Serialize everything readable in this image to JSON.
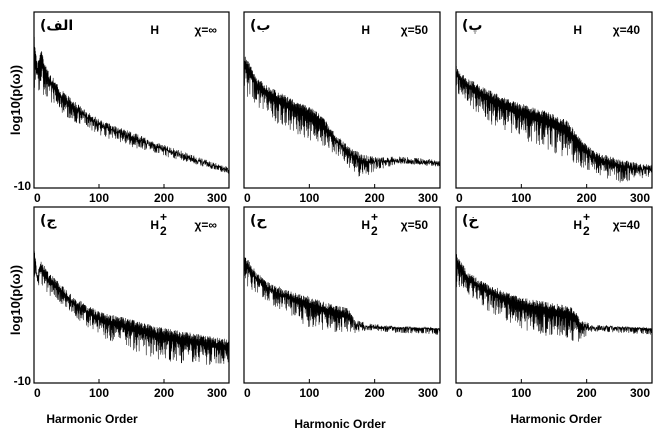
{
  "figure": {
    "y_axis_label": "log10(p(ω))",
    "x_axis_label": "Harmonic Order"
  },
  "chart_data": [
    {
      "type": "line",
      "panel_label": "الف)",
      "species": "H",
      "species_super": "",
      "species_sub": "",
      "chi": "χ=∞",
      "xlim": [
        0,
        300
      ],
      "ylim": [
        -10,
        5
      ],
      "x_ticks": [
        "0",
        "100",
        "200",
        "300"
      ],
      "y_ticks": [
        "-10"
      ],
      "envelope": {
        "x": [
          0,
          5,
          10,
          20,
          40,
          60,
          80,
          100,
          120,
          150,
          180,
          210,
          240,
          270,
          300
        ],
        "y": [
          3.2,
          0.5,
          2.0,
          0.2,
          -1.5,
          -2.5,
          -3.4,
          -4.1,
          -4.6,
          -5.2,
          -5.9,
          -6.5,
          -7.1,
          -7.7,
          -8.2
        ]
      },
      "lower_envelope": {
        "x": [
          0,
          50,
          100,
          150,
          200,
          250,
          300
        ],
        "y": [
          -1.5,
          -4.0,
          -5.5,
          -6.5,
          -7.3,
          -8.0,
          -8.8
        ]
      }
    },
    {
      "type": "line",
      "panel_label": "ب)",
      "species": "H",
      "species_super": "",
      "species_sub": "",
      "chi": "χ=50",
      "xlim": [
        0,
        300
      ],
      "ylim": [
        -10,
        5
      ],
      "x_ticks": [
        "0",
        "100",
        "200",
        "300"
      ],
      "y_ticks": [],
      "envelope": {
        "x": [
          0,
          10,
          20,
          40,
          60,
          80,
          100,
          120,
          140,
          160,
          180,
          200,
          240,
          300
        ],
        "y": [
          1.5,
          0.5,
          -0.6,
          -1.4,
          -2.0,
          -2.6,
          -3.0,
          -3.8,
          -5.4,
          -6.4,
          -7.1,
          -7.3,
          -7.3,
          -7.6
        ]
      },
      "lower_envelope": {
        "x": [
          0,
          50,
          100,
          150,
          180,
          200,
          240,
          300
        ],
        "y": [
          -2.0,
          -4.5,
          -6.0,
          -7.5,
          -9.5,
          -8.5,
          -8.0,
          -8.0
        ]
      }
    },
    {
      "type": "line",
      "panel_label": "پ)",
      "species": "H",
      "species_super": "",
      "species_sub": "",
      "chi": "χ=40",
      "xlim": [
        0,
        300
      ],
      "ylim": [
        -10,
        5
      ],
      "x_ticks": [
        "0",
        "100",
        "200",
        "300"
      ],
      "y_ticks": [],
      "envelope": {
        "x": [
          0,
          10,
          20,
          40,
          60,
          80,
          100,
          140,
          170,
          190,
          210,
          240,
          270,
          300
        ],
        "y": [
          0.5,
          -0.3,
          -0.7,
          -1.3,
          -1.9,
          -2.4,
          -2.8,
          -3.5,
          -4.2,
          -5.8,
          -6.8,
          -7.4,
          -7.7,
          -8.0
        ]
      },
      "lower_envelope": {
        "x": [
          0,
          50,
          100,
          150,
          200,
          250,
          300
        ],
        "y": [
          -2.0,
          -4.5,
          -5.8,
          -7.0,
          -8.5,
          -9.6,
          -9.0
        ]
      }
    },
    {
      "type": "line",
      "panel_label": "ج)",
      "species": "H",
      "species_super": "+",
      "species_sub": "2",
      "chi": "χ=∞",
      "xlim": [
        0,
        300
      ],
      "ylim": [
        -10,
        5
      ],
      "x_ticks": [
        "0",
        "100",
        "200",
        "300"
      ],
      "y_ticks": [
        "-10"
      ],
      "envelope": {
        "x": [
          0,
          5,
          10,
          20,
          40,
          60,
          80,
          100,
          130,
          160,
          190,
          220,
          260,
          300
        ],
        "y": [
          2.0,
          -0.8,
          0.5,
          -0.4,
          -1.5,
          -2.6,
          -3.3,
          -3.9,
          -4.3,
          -4.7,
          -5.2,
          -5.5,
          -5.9,
          -6.3
        ]
      },
      "lower_envelope": {
        "x": [
          0,
          50,
          100,
          150,
          200,
          250,
          300
        ],
        "y": [
          -1.5,
          -3.8,
          -6.0,
          -7.2,
          -8.2,
          -8.4,
          -8.6
        ]
      }
    },
    {
      "type": "line",
      "panel_label": "ح)",
      "species": "H",
      "species_super": "+",
      "species_sub": "2",
      "chi": "χ=50",
      "xlim": [
        0,
        300
      ],
      "ylim": [
        -10,
        5
      ],
      "x_ticks": [
        "0",
        "100",
        "200",
        "300"
      ],
      "y_ticks": [],
      "envelope": {
        "x": [
          0,
          10,
          20,
          40,
          60,
          80,
          100,
          120,
          140,
          160,
          170,
          190,
          220,
          260,
          300
        ],
        "y": [
          1.0,
          0.2,
          -0.6,
          -1.5,
          -1.9,
          -2.3,
          -2.6,
          -3.0,
          -3.4,
          -3.6,
          -4.6,
          -4.9,
          -5.1,
          -5.2,
          -5.3
        ]
      },
      "lower_envelope": {
        "x": [
          0,
          50,
          100,
          150,
          170,
          200,
          250,
          300
        ],
        "y": [
          -1.6,
          -3.6,
          -5.3,
          -6.0,
          -5.8,
          -5.4,
          -5.4,
          -5.4
        ]
      }
    },
    {
      "type": "line",
      "panel_label": "خ)",
      "species": "H",
      "species_super": "+",
      "species_sub": "2",
      "chi": "χ=40",
      "xlim": [
        0,
        300
      ],
      "ylim": [
        -10,
        5
      ],
      "x_ticks": [
        "0",
        "100",
        "200",
        "300"
      ],
      "y_ticks": [],
      "envelope": {
        "x": [
          0,
          10,
          20,
          40,
          60,
          80,
          100,
          130,
          160,
          180,
          190,
          210,
          240,
          270,
          300
        ],
        "y": [
          1.1,
          0.2,
          -0.6,
          -1.3,
          -1.8,
          -2.3,
          -2.7,
          -3.0,
          -3.3,
          -3.6,
          -4.6,
          -5.0,
          -5.1,
          -5.2,
          -5.3
        ]
      },
      "lower_envelope": {
        "x": [
          0,
          50,
          100,
          150,
          190,
          210,
          250,
          300
        ],
        "y": [
          -1.8,
          -3.9,
          -5.4,
          -6.2,
          -6.5,
          -5.6,
          -5.4,
          -5.4
        ]
      }
    }
  ]
}
